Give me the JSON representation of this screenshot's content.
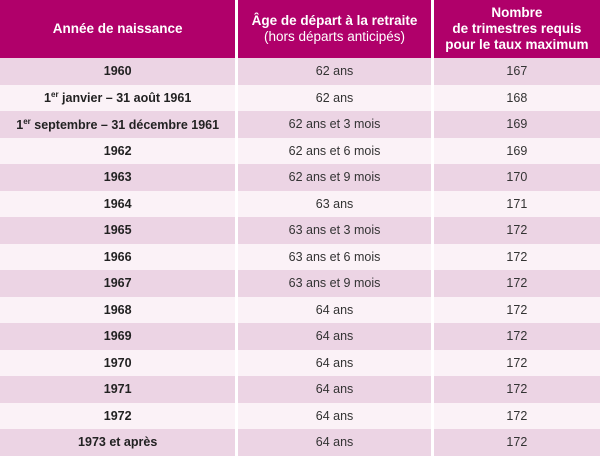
{
  "header": {
    "col1": "Année de naissance",
    "col2_title": "Âge de départ à la retraite",
    "col2_sub": "(hors départs anticipés)",
    "col3_line1": "Nombre",
    "col3_line2": "de trimestres requis",
    "col3_line3": "pour le taux maximum"
  },
  "accent_color": "#b0006a",
  "rows": [
    {
      "birth": "1960",
      "age": "62 ans",
      "quarters": "167"
    },
    {
      "birth_sup": "er",
      "birth_pre": "1",
      "birth": " janvier – 31 août 1961",
      "age": "62 ans",
      "quarters": "168"
    },
    {
      "birth_sup": "er",
      "birth_pre": "1",
      "birth": " septembre – 31 décembre 1961",
      "age": "62 ans et 3 mois",
      "quarters": "169"
    },
    {
      "birth": "1962",
      "age": "62 ans et 6 mois",
      "quarters": "169"
    },
    {
      "birth": "1963",
      "age": "62 ans et 9 mois",
      "quarters": "170"
    },
    {
      "birth": "1964",
      "age": "63 ans",
      "quarters": "171"
    },
    {
      "birth": "1965",
      "age": "63 ans et 3 mois",
      "quarters": "172"
    },
    {
      "birth": "1966",
      "age": "63 ans et 6 mois",
      "quarters": "172"
    },
    {
      "birth": "1967",
      "age": "63 ans et 9 mois",
      "quarters": "172"
    },
    {
      "birth": "1968",
      "age": "64 ans",
      "quarters": "172"
    },
    {
      "birth": "1969",
      "age": "64 ans",
      "quarters": "172"
    },
    {
      "birth": "1970",
      "age": "64 ans",
      "quarters": "172"
    },
    {
      "birth": "1971",
      "age": "64 ans",
      "quarters": "172"
    },
    {
      "birth": "1972",
      "age": "64 ans",
      "quarters": "172"
    },
    {
      "birth": "1973 et après",
      "age": "64 ans",
      "quarters": "172"
    }
  ]
}
